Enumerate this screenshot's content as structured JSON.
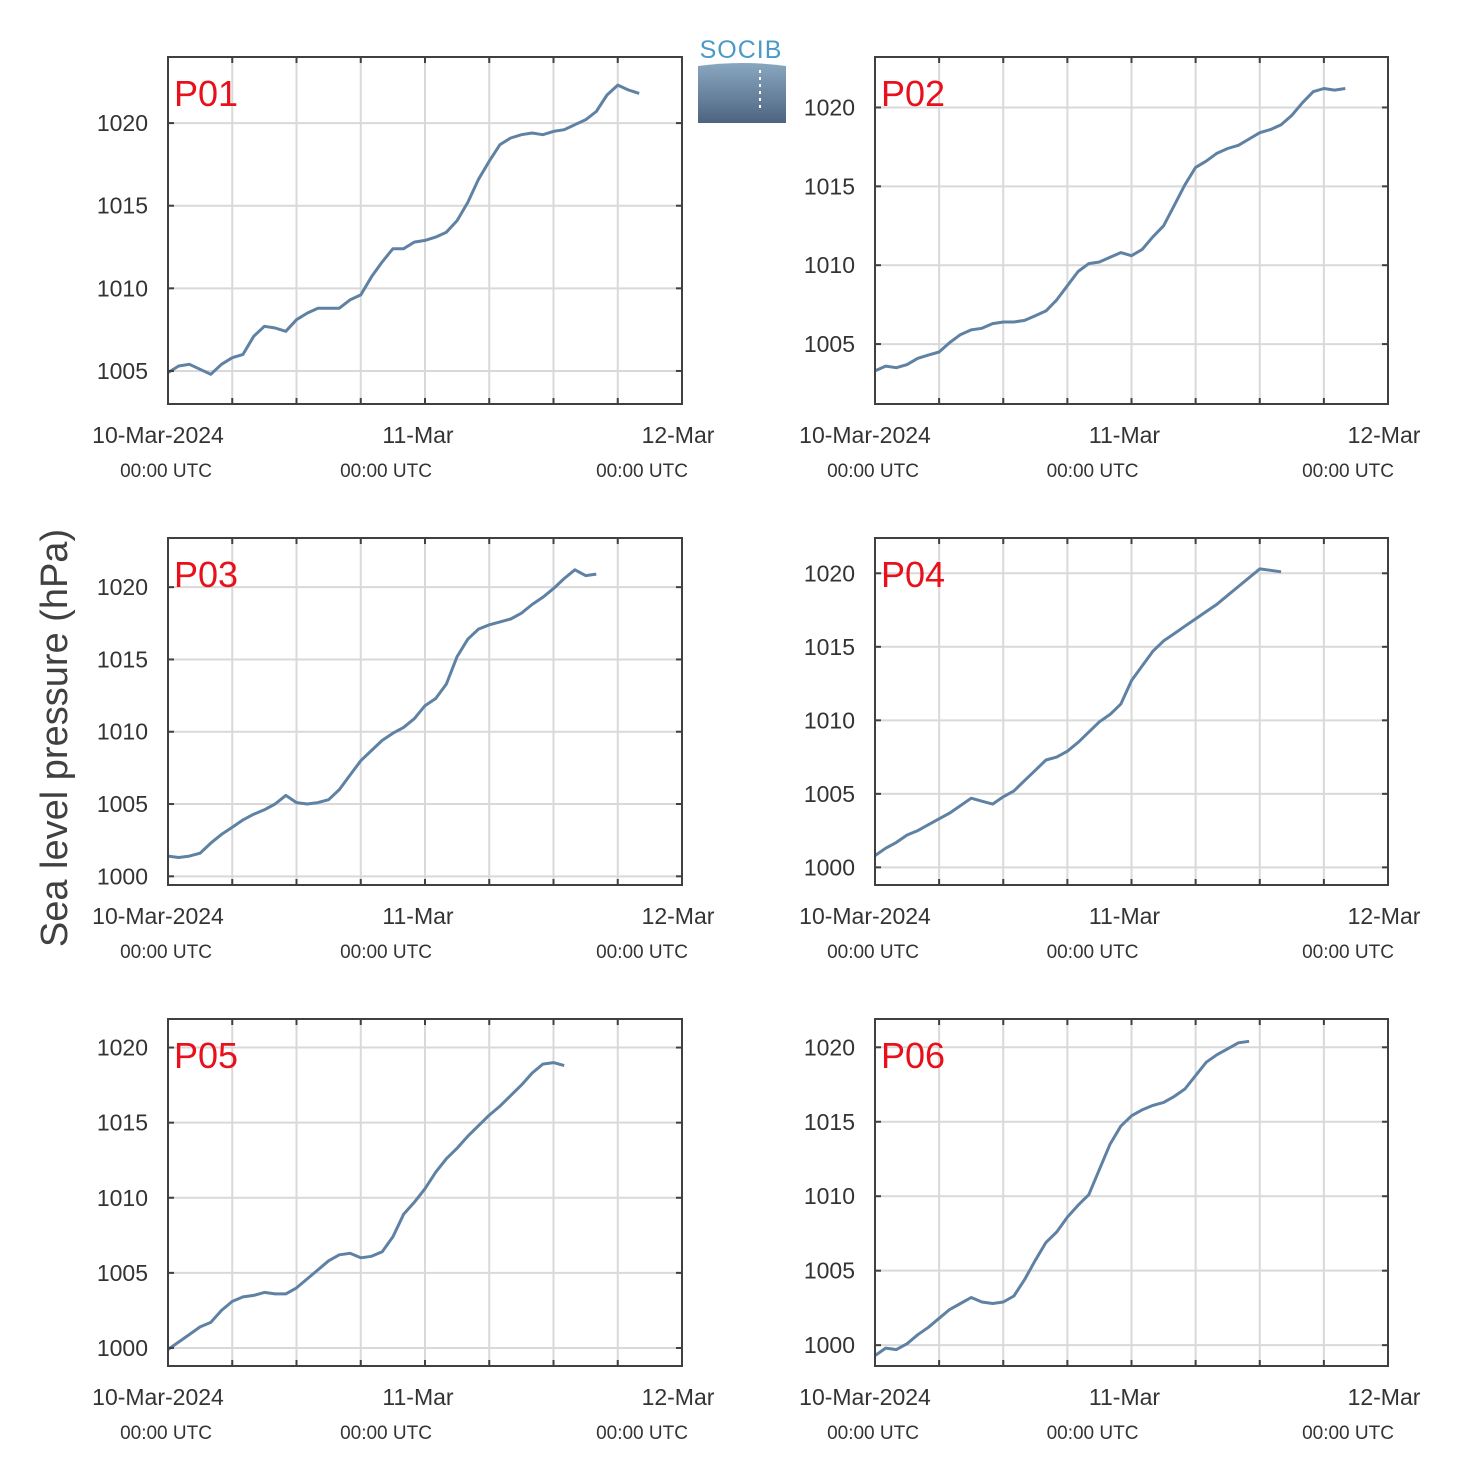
{
  "figure": {
    "ylabel": "Sea level pressure (hPa)",
    "logo_text": "SOCIB"
  },
  "colors": {
    "line": "#5f81a3",
    "grid": "#d9d9d9",
    "axis": "#404040",
    "title": "#e8101a"
  },
  "chart_data": [
    {
      "type": "line",
      "title": "P01",
      "xlabel": "",
      "ylabel": "Sea level pressure (hPa)",
      "xlim": [
        "10-Mar-2024 00:00 UTC",
        "12-Mar-2024 00:00 UTC"
      ],
      "xticks": [
        {
          "label": "10-Mar-2024",
          "sub": "00:00 UTC"
        },
        {
          "label": "11-Mar",
          "sub": "00:00 UTC"
        },
        {
          "label": "12-Mar",
          "sub": "00:00 UTC"
        }
      ],
      "ylim": [
        1003,
        1024
      ],
      "yticks": [
        1005,
        1010,
        1015,
        1020
      ],
      "grid": true,
      "series": [
        {
          "x_hours": [
            0,
            1,
            2,
            3,
            4,
            5,
            6,
            7,
            8,
            9,
            10,
            11,
            12,
            13,
            14,
            15,
            16,
            17,
            18,
            19,
            20,
            21,
            22,
            23,
            24,
            25,
            26,
            27,
            28,
            29,
            30,
            31,
            32,
            33,
            34,
            35,
            36,
            37,
            38,
            39,
            40,
            41,
            42,
            43,
            44,
            45,
            46,
            47,
            48
          ],
          "values": [
            1004.9,
            1005.3,
            1005.4,
            1005.1,
            1004.8,
            1005.4,
            1005.8,
            1006.0,
            1007.1,
            1007.7,
            1007.6,
            1007.4,
            1008.1,
            1008.5,
            1008.8,
            1008.8,
            1008.8,
            1009.3,
            1009.6,
            1010.7,
            1011.6,
            1012.4,
            1012.4,
            1012.8,
            1012.9,
            1013.1,
            1013.4,
            1014.1,
            1015.2,
            1016.6,
            1017.7,
            1018.7,
            1019.1,
            1019.3,
            1019.4,
            1019.3,
            1019.5,
            1019.6,
            1019.9,
            1020.2,
            1020.7,
            1021.7,
            1022.3,
            1022.0,
            1021.8,
            null,
            null,
            null,
            null
          ]
        }
      ]
    },
    {
      "type": "line",
      "title": "P02",
      "xlabel": "",
      "ylabel": "Sea level pressure (hPa)",
      "xlim": [
        "10-Mar-2024 00:00 UTC",
        "12-Mar-2024 00:00 UTC"
      ],
      "xticks": [
        {
          "label": "10-Mar-2024",
          "sub": "00:00 UTC"
        },
        {
          "label": "11-Mar",
          "sub": "00:00 UTC"
        },
        {
          "label": "12-Mar",
          "sub": "00:00 UTC"
        }
      ],
      "ylim": [
        1001.2,
        1023.2
      ],
      "yticks": [
        1005,
        1010,
        1015,
        1020
      ],
      "grid": true,
      "series": [
        {
          "x_hours": [
            0,
            1,
            2,
            3,
            4,
            5,
            6,
            7,
            8,
            9,
            10,
            11,
            12,
            13,
            14,
            15,
            16,
            17,
            18,
            19,
            20,
            21,
            22,
            23,
            24,
            25,
            26,
            27,
            28,
            29,
            30,
            31,
            32,
            33,
            34,
            35,
            36,
            37,
            38,
            39,
            40,
            41,
            42,
            43,
            44,
            45,
            46,
            47,
            48
          ],
          "values": [
            1003.3,
            1003.6,
            1003.5,
            1003.7,
            1004.1,
            1004.3,
            1004.5,
            1005.1,
            1005.6,
            1005.9,
            1006.0,
            1006.3,
            1006.4,
            1006.4,
            1006.5,
            1006.8,
            1007.1,
            1007.8,
            1008.7,
            1009.6,
            1010.1,
            1010.2,
            1010.5,
            1010.8,
            1010.6,
            1011.0,
            1011.8,
            1012.5,
            1013.8,
            1015.1,
            1016.2,
            1016.6,
            1017.1,
            1017.4,
            1017.6,
            1018.0,
            1018.4,
            1018.6,
            1018.9,
            1019.5,
            1020.3,
            1021.0,
            1021.2,
            1021.1,
            1021.2,
            null,
            null,
            null,
            null
          ]
        }
      ]
    },
    {
      "type": "line",
      "title": "P03",
      "xlabel": "",
      "ylabel": "Sea level pressure (hPa)",
      "xlim": [
        "10-Mar-2024 00:00 UTC",
        "12-Mar-2024 00:00 UTC"
      ],
      "xticks": [
        {
          "label": "10-Mar-2024",
          "sub": "00:00 UTC"
        },
        {
          "label": "11-Mar",
          "sub": "00:00 UTC"
        },
        {
          "label": "12-Mar",
          "sub": "00:00 UTC"
        }
      ],
      "ylim": [
        999.4,
        1023.4
      ],
      "yticks": [
        1000,
        1005,
        1010,
        1015,
        1020
      ],
      "grid": true,
      "series": [
        {
          "x_hours": [
            0,
            1,
            2,
            3,
            4,
            5,
            6,
            7,
            8,
            9,
            10,
            11,
            12,
            13,
            14,
            15,
            16,
            17,
            18,
            19,
            20,
            21,
            22,
            23,
            24,
            25,
            26,
            27,
            28,
            29,
            30,
            31,
            32,
            33,
            34,
            35,
            36,
            37,
            38,
            39,
            40,
            41,
            42,
            43,
            44,
            45,
            46,
            47,
            48
          ],
          "values": [
            1001.4,
            1001.3,
            1001.4,
            1001.6,
            1002.3,
            1002.9,
            1003.4,
            1003.9,
            1004.3,
            1004.6,
            1005.0,
            1005.6,
            1005.1,
            1005.0,
            1005.1,
            1005.3,
            1006.0,
            1007.0,
            1008.0,
            1008.7,
            1009.4,
            1009.9,
            1010.3,
            1010.9,
            1011.8,
            1012.3,
            1013.3,
            1015.2,
            1016.4,
            1017.1,
            1017.4,
            1017.6,
            1017.8,
            1018.2,
            1018.8,
            1019.3,
            1019.9,
            1020.6,
            1021.2,
            1020.8,
            1020.9,
            null,
            null,
            null,
            null,
            null,
            null,
            null,
            null
          ]
        }
      ]
    },
    {
      "type": "line",
      "title": "P04",
      "xlabel": "",
      "ylabel": "Sea level pressure (hPa)",
      "xlim": [
        "10-Mar-2024 00:00 UTC",
        "12-Mar-2024 00:00 UTC"
      ],
      "xticks": [
        {
          "label": "10-Mar-2024",
          "sub": "00:00 UTC"
        },
        {
          "label": "11-Mar",
          "sub": "00:00 UTC"
        },
        {
          "label": "12-Mar",
          "sub": "00:00 UTC"
        }
      ],
      "ylim": [
        998.8,
        1022.4
      ],
      "yticks": [
        1000,
        1005,
        1010,
        1015,
        1020
      ],
      "grid": true,
      "series": [
        {
          "x_hours": [
            0,
            1,
            2,
            3,
            4,
            5,
            6,
            7,
            8,
            9,
            10,
            11,
            12,
            13,
            14,
            15,
            16,
            17,
            18,
            19,
            20,
            21,
            22,
            23,
            24,
            25,
            26,
            27,
            28,
            29,
            30,
            31,
            32,
            33,
            34,
            35,
            36,
            37,
            38,
            39,
            40,
            41,
            42,
            43,
            44,
            45,
            46,
            47,
            48
          ],
          "values": [
            1000.8,
            1001.3,
            1001.7,
            1002.2,
            1002.5,
            1002.9,
            1003.3,
            1003.7,
            1004.2,
            1004.7,
            1004.5,
            1004.3,
            1004.8,
            1005.2,
            1005.9,
            1006.6,
            1007.3,
            1007.5,
            1007.9,
            1008.5,
            1009.2,
            1009.9,
            1010.4,
            1011.1,
            1012.7,
            1013.7,
            1014.7,
            1015.4,
            1015.9,
            1016.4,
            1016.9,
            1017.4,
            1017.9,
            1018.5,
            1019.1,
            1019.7,
            1020.3,
            1020.2,
            1020.1,
            null,
            null,
            null,
            null,
            null,
            null,
            null,
            null,
            null,
            null
          ]
        }
      ]
    },
    {
      "type": "line",
      "title": "P05",
      "xlabel": "",
      "ylabel": "Sea level pressure (hPa)",
      "xlim": [
        "10-Mar-2024 00:00 UTC",
        "12-Mar-2024 00:00 UTC"
      ],
      "xticks": [
        {
          "label": "10-Mar-2024",
          "sub": "00:00 UTC"
        },
        {
          "label": "11-Mar",
          "sub": "00:00 UTC"
        },
        {
          "label": "12-Mar",
          "sub": "00:00 UTC"
        }
      ],
      "ylim": [
        998.8,
        1021.9
      ],
      "yticks": [
        1000,
        1005,
        1010,
        1015,
        1020
      ],
      "grid": true,
      "series": [
        {
          "x_hours": [
            0,
            1,
            2,
            3,
            4,
            5,
            6,
            7,
            8,
            9,
            10,
            11,
            12,
            13,
            14,
            15,
            16,
            17,
            18,
            19,
            20,
            21,
            22,
            23,
            24,
            25,
            26,
            27,
            28,
            29,
            30,
            31,
            32,
            33,
            34,
            35,
            36,
            37,
            38,
            39,
            40,
            41,
            42,
            43,
            44,
            45,
            46,
            47,
            48
          ],
          "values": [
            999.9,
            1000.4,
            1000.9,
            1001.4,
            1001.7,
            1002.5,
            1003.1,
            1003.4,
            1003.5,
            1003.7,
            1003.6,
            1003.6,
            1004.0,
            1004.6,
            1005.2,
            1005.8,
            1006.2,
            1006.3,
            1006.0,
            1006.1,
            1006.4,
            1007.4,
            1008.9,
            1009.7,
            1010.6,
            1011.7,
            1012.6,
            1013.3,
            1014.1,
            1014.8,
            1015.5,
            1016.1,
            1016.8,
            1017.5,
            1018.3,
            1018.9,
            1019.0,
            1018.8,
            null,
            null,
            null,
            null,
            null,
            null,
            null,
            null,
            null,
            null,
            null
          ]
        }
      ]
    },
    {
      "type": "line",
      "title": "P06",
      "xlabel": "",
      "ylabel": "Sea level pressure (hPa)",
      "xlim": [
        "10-Mar-2024 00:00 UTC",
        "12-Mar-2024 00:00 UTC"
      ],
      "xticks": [
        {
          "label": "10-Mar-2024",
          "sub": "00:00 UTC"
        },
        {
          "label": "11-Mar",
          "sub": "00:00 UTC"
        },
        {
          "label": "12-Mar",
          "sub": "00:00 UTC"
        }
      ],
      "ylim": [
        998.6,
        1021.9
      ],
      "yticks": [
        1000,
        1005,
        1010,
        1015,
        1020
      ],
      "grid": true,
      "series": [
        {
          "x_hours": [
            0,
            1,
            2,
            3,
            4,
            5,
            6,
            7,
            8,
            9,
            10,
            11,
            12,
            13,
            14,
            15,
            16,
            17,
            18,
            19,
            20,
            21,
            22,
            23,
            24,
            25,
            26,
            27,
            28,
            29,
            30,
            31,
            32,
            33,
            34,
            35,
            36,
            37,
            38,
            39,
            40,
            41,
            42,
            43,
            44,
            45,
            46,
            47,
            48
          ],
          "values": [
            999.3,
            999.8,
            999.7,
            1000.1,
            1000.7,
            1001.2,
            1001.8,
            1002.4,
            1002.8,
            1003.2,
            1002.9,
            1002.8,
            1002.9,
            1003.3,
            1004.4,
            1005.7,
            1006.9,
            1007.6,
            1008.6,
            1009.4,
            1010.1,
            1011.8,
            1013.5,
            1014.7,
            1015.4,
            1015.8,
            1016.1,
            1016.3,
            1016.7,
            1017.2,
            1018.1,
            1019.0,
            1019.5,
            1019.9,
            1020.3,
            1020.4,
            null,
            null,
            null,
            null,
            null,
            null,
            null,
            null,
            null,
            null,
            null,
            null,
            null
          ]
        }
      ]
    }
  ]
}
